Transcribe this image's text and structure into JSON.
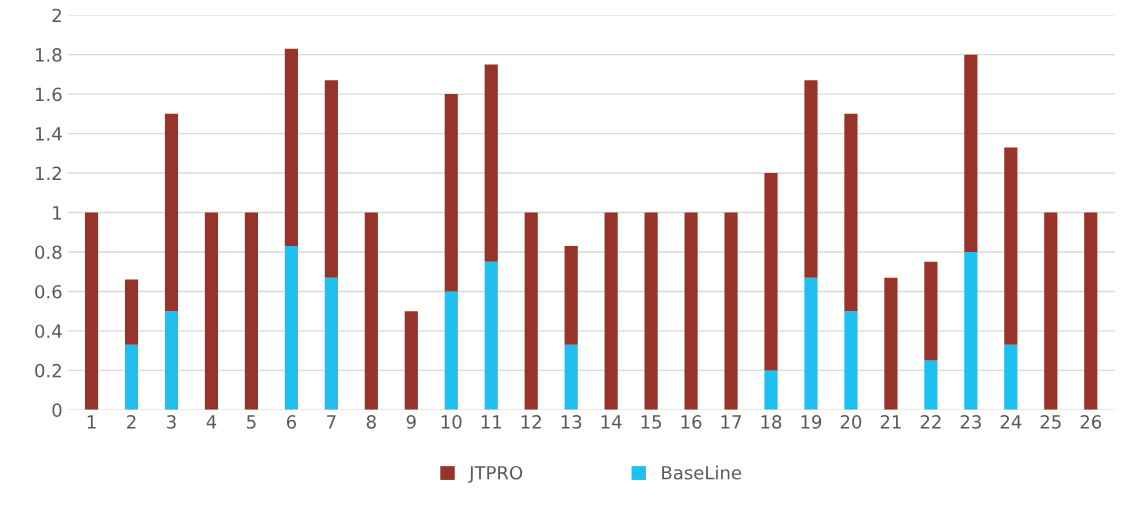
{
  "chart_data": {
    "type": "bar",
    "stacked": true,
    "categories": [
      "1",
      "2",
      "3",
      "4",
      "5",
      "6",
      "7",
      "8",
      "9",
      "10",
      "11",
      "12",
      "13",
      "14",
      "15",
      "16",
      "17",
      "18",
      "19",
      "20",
      "21",
      "22",
      "23",
      "24",
      "25",
      "26"
    ],
    "series": [
      {
        "name": "BaseLine",
        "color": "#1fbff0",
        "values": [
          0,
          0.33,
          0.5,
          0,
          0,
          0.83,
          0.67,
          0,
          0,
          0.6,
          0.75,
          0,
          0.33,
          0,
          0,
          0,
          0,
          0.2,
          0.67,
          0.5,
          0,
          0.25,
          0.8,
          0.33,
          0,
          0
        ]
      },
      {
        "name": "JTPRO",
        "color": "#96342a",
        "values": [
          1,
          0.33,
          1,
          1,
          1,
          1,
          1,
          1,
          0.5,
          1,
          1,
          1,
          0.5,
          1,
          1,
          1,
          1,
          1,
          1,
          1,
          0.67,
          0.5,
          1,
          1,
          1,
          1
        ]
      }
    ],
    "ylim": [
      0,
      2
    ],
    "yticks": [
      0,
      0.2,
      0.4,
      0.6,
      0.8,
      1,
      1.2,
      1.4,
      1.6,
      1.8,
      2
    ],
    "grid": "y",
    "legend": "bottom"
  }
}
